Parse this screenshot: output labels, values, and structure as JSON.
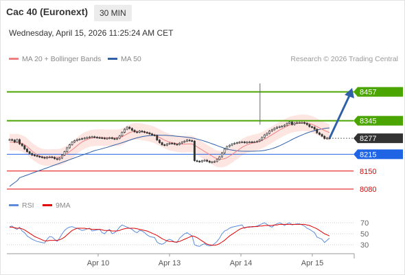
{
  "header": {
    "instrument": "Cac 40 (Euronext)",
    "timeframe": "30 MIN",
    "datetime": "Wednesday, April 15, 2026 11:25:24 AM CET"
  },
  "legend": {
    "ma20_bb": "MA 20 + Bollinger Bands",
    "ma50": "MA 50",
    "rsi": "RSI",
    "ma9": "9MA"
  },
  "credit": "Research © 2026 Trading Central",
  "colors": {
    "ma20": "#f08080",
    "bands_fill": "#fcdcd8",
    "ma50": "#2f5fa7",
    "candle": "#333333",
    "green_level": "#4aa500",
    "last_label": "#333333",
    "blue_level": "#1f64e4",
    "red_level": "#e00000",
    "rsi": "#5b8bd9",
    "rsi_ma": "#e00000",
    "arrow": "#2f5fa7"
  },
  "chart_data": [
    {
      "type": "candlestick",
      "title": "Cac 40 (Euronext) 30 MIN",
      "x_labels": [
        "Apr 10",
        "Apr 13",
        "Apr 14",
        "Apr 15"
      ],
      "price_labels": [
        {
          "value": 8457,
          "text": "8457",
          "role": "target",
          "color": "#4aa500"
        },
        {
          "value": 8345,
          "text": "8345",
          "role": "resistance",
          "color": "#4aa500"
        },
        {
          "value": 8277,
          "text": "8277",
          "role": "last",
          "color": "#333333"
        },
        {
          "value": 8215,
          "text": "8215",
          "role": "pivot",
          "color": "#1f64e4"
        },
        {
          "value": 8150,
          "text": "8150",
          "role": "support",
          "color": "#e00000"
        },
        {
          "value": 8080,
          "text": "8080",
          "role": "support",
          "color": "#e00000"
        }
      ],
      "ylim": [
        8040,
        8560
      ],
      "close": [
        8272,
        8270,
        8262,
        8272,
        8255,
        8248,
        8235,
        8225,
        8218,
        8212,
        8210,
        8207,
        8205,
        8203,
        8200,
        8204,
        8205,
        8203,
        8198,
        8195,
        8200,
        8212,
        8225,
        8240,
        8252,
        8262,
        8268,
        8272,
        8274,
        8276,
        8278,
        8280,
        8282,
        8283,
        8281,
        8280,
        8279,
        8278,
        8276,
        8277,
        8279,
        8276,
        8274,
        8277,
        8286,
        8300,
        8312,
        8320,
        8315,
        8308,
        8302,
        8300,
        8305,
        8303,
        8300,
        8298,
        8294,
        8290,
        8288,
        8270,
        8260,
        8252,
        8250,
        8255,
        8258,
        8257,
        8254,
        8253,
        8258,
        8262,
        8266,
        8270,
        8268,
        8266,
        8190,
        8188,
        8186,
        8190,
        8192,
        8188,
        8184,
        8185,
        8187,
        8195,
        8205,
        8220,
        8235,
        8245,
        8250,
        8255,
        8258,
        8260,
        8262,
        8263,
        8260,
        8262,
        8263,
        8262,
        8263,
        8265,
        8270,
        8280,
        8290,
        8296,
        8305,
        8310,
        8316,
        8320,
        8322,
        8324,
        8328,
        8335,
        8340,
        8330,
        8336,
        8338,
        8338,
        8338,
        8335,
        8330,
        8322,
        8320,
        8312,
        8298,
        8292,
        8285,
        8276,
        8278,
        8277
      ],
      "high_spike": {
        "value": 8490,
        "near": "Apr 14"
      },
      "ma20": [
        8262,
        8262,
        8261,
        8262,
        8260,
        8257,
        8252,
        8245,
        8236,
        8227,
        8220,
        8214,
        8208,
        8205,
        8203,
        8202,
        8202,
        8203,
        8203,
        8203,
        8204,
        8207,
        8212,
        8218,
        8225,
        8232,
        8240,
        8248,
        8256,
        8263,
        8268,
        8272,
        8276,
        8278,
        8279,
        8280,
        8280,
        8280,
        8279,
        8279,
        8279,
        8279,
        8279,
        8279,
        8280,
        8283,
        8288,
        8294,
        8299,
        8302,
        8304,
        8304,
        8303,
        8302,
        8300,
        8298,
        8296,
        8293,
        8290,
        8285,
        8280,
        8275,
        8270,
        8266,
        8262,
        8260,
        8258,
        8256,
        8255,
        8254,
        8254,
        8255,
        8255,
        8255,
        8250,
        8244,
        8238,
        8232,
        8226,
        8220,
        8214,
        8208,
        8202,
        8198,
        8196,
        8196,
        8198,
        8202,
        8208,
        8214,
        8221,
        8228,
        8235,
        8242,
        8247,
        8252,
        8255,
        8258,
        8260,
        8262,
        8265,
        8269,
        8274,
        8279,
        8285,
        8291,
        8297,
        8303,
        8309,
        8314,
        8319,
        8324,
        8328,
        8331,
        8333,
        8335,
        8336,
        8337,
        8337,
        8336,
        8334,
        8331,
        8327,
        8322,
        8317,
        8312,
        8307,
        8303,
        8299
      ]
    },
    {
      "type": "line",
      "title": "RSI",
      "y_ticks": [
        70,
        50,
        30
      ],
      "ylim": [
        15,
        85
      ],
      "series": [
        {
          "name": "RSI",
          "values": [
            63,
            64,
            60,
            58,
            62,
            55,
            52,
            46,
            43,
            40,
            38,
            36,
            35,
            34,
            33,
            40,
            45,
            44,
            40,
            36,
            42,
            50,
            56,
            60,
            62,
            63,
            61,
            60,
            58,
            56,
            57,
            59,
            60,
            55,
            56,
            57,
            58,
            52,
            50,
            55,
            58,
            50,
            52,
            56,
            62,
            66,
            64,
            62,
            60,
            58,
            54,
            52,
            56,
            55,
            52,
            48,
            45,
            44,
            43,
            35,
            32,
            31,
            33,
            38,
            40,
            38,
            35,
            34,
            42,
            46,
            50,
            52,
            49,
            46,
            30,
            28,
            27,
            30,
            32,
            29,
            28,
            29,
            32,
            36,
            42,
            50,
            55,
            57,
            60,
            62,
            63,
            64,
            65,
            66,
            60,
            62,
            63,
            62,
            63,
            64,
            66,
            68,
            70,
            67,
            64,
            62,
            66,
            68,
            70,
            68,
            65,
            68,
            70,
            66,
            67,
            68,
            68,
            66,
            64,
            60,
            58,
            55,
            52,
            44,
            42,
            40,
            34,
            38,
            42
          ]
        },
        {
          "name": "9MA",
          "values": [
            62,
            62,
            61,
            60,
            60,
            59,
            57,
            54,
            51,
            48,
            45,
            43,
            41,
            39,
            37,
            37,
            38,
            38,
            38,
            38,
            39,
            41,
            44,
            48,
            52,
            56,
            58,
            60,
            60,
            60,
            60,
            59,
            59,
            58,
            58,
            58,
            58,
            57,
            56,
            56,
            56,
            55,
            55,
            55,
            56,
            58,
            59,
            60,
            60,
            60,
            60,
            59,
            58,
            57,
            56,
            55,
            53,
            51,
            49,
            47,
            44,
            41,
            39,
            37,
            36,
            36,
            35,
            35,
            36,
            38,
            40,
            42,
            44,
            46,
            45,
            43,
            40,
            37,
            34,
            31,
            30,
            29,
            29,
            30,
            32,
            35,
            38,
            42,
            46,
            49,
            52,
            55,
            58,
            60,
            61,
            62,
            62,
            63,
            63,
            63,
            64,
            64,
            65,
            65,
            65,
            65,
            66,
            66,
            67,
            67,
            67,
            67,
            67,
            67,
            67,
            67,
            67,
            67,
            67,
            66,
            65,
            63,
            61,
            59,
            56,
            53,
            50,
            48,
            46
          ]
        }
      ]
    }
  ]
}
